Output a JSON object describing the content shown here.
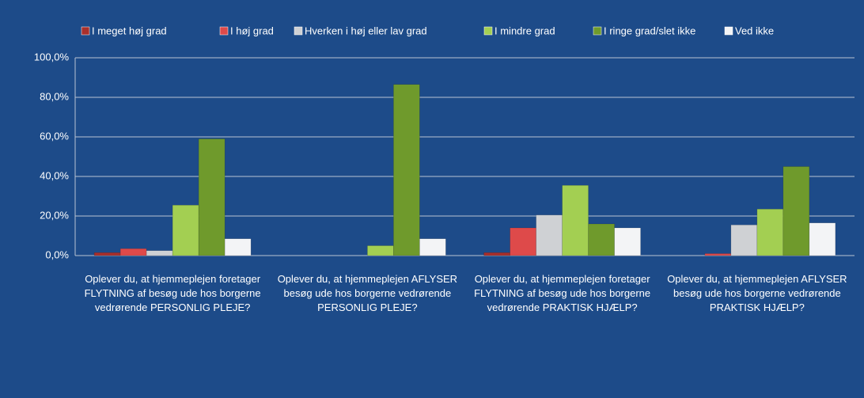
{
  "chart_data": {
    "type": "bar",
    "categories": [
      "Oplever du, at hjemmeplejen foretager FLYTNING  af besøg ude hos borgerne vedrørende PERSONLIG PLEJE?",
      "Oplever du, at hjemmeplejen AFLYSER besøg ude hos borgerne vedrørende PERSONLIG PLEJE?",
      "Oplever du, at hjemmeplejen foretager FLYTNING  af besøg ude hos borgerne vedrørende PRAKTISK HJÆLP?",
      "Oplever du, at hjemmeplejen AFLYSER besøg ude hos borgerne vedrørende PRAKTISK HJÆLP?"
    ],
    "series": [
      {
        "name": "I meget høj grad",
        "color": "#a8302c",
        "values": [
          1.5,
          0,
          1.5,
          0
        ]
      },
      {
        "name": "I høj grad",
        "color": "#de4a4a",
        "values": [
          3.5,
          0,
          14,
          1
        ]
      },
      {
        "name": "Hverken i høj eller lav grad",
        "color": "#cfd1d4",
        "values": [
          2.5,
          0,
          20.5,
          15.5
        ]
      },
      {
        "name": "I mindre grad",
        "color": "#a3cf52",
        "values": [
          25.5,
          5,
          35.5,
          23.5
        ]
      },
      {
        "name": "I ringe grad/slet ikke",
        "color": "#6f9a2c",
        "values": [
          59,
          86.5,
          16,
          45
        ]
      },
      {
        "name": "Ved ikke",
        "color": "#f3f4f6",
        "values": [
          8.5,
          8.5,
          14,
          16.5
        ]
      }
    ],
    "ylim": [
      0,
      100
    ],
    "yticks": [
      {
        "value": 0,
        "label": "0,0%"
      },
      {
        "value": 20,
        "label": "20,0%"
      },
      {
        "value": 40,
        "label": "40,0%"
      },
      {
        "value": 60,
        "label": "60,0%"
      },
      {
        "value": 80,
        "label": "80,0%"
      },
      {
        "value": 100,
        "label": "100,0%"
      }
    ],
    "grid": true
  }
}
